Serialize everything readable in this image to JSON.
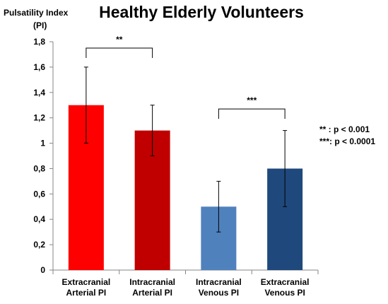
{
  "chart_data": {
    "type": "bar",
    "title": "Healthy Elderly Volunteers",
    "ylabel_line1": "Pulsatility Index",
    "ylabel_line2": "(PI)",
    "ylim": [
      0,
      1.8
    ],
    "yticks": [
      0,
      0.2,
      0.4,
      0.6,
      0.8,
      1,
      1.2,
      1.4,
      1.6,
      1.8
    ],
    "ytick_labels": [
      "0",
      "0,2",
      "0,4",
      "0,6",
      "0,8",
      "1",
      "1,2",
      "1,4",
      "1,6",
      "1,8"
    ],
    "grid": false,
    "categories": [
      [
        "Extracranial",
        "Arterial PI"
      ],
      [
        "Intracranial",
        "Arterial PI"
      ],
      [
        "Intracranial",
        "Venous PI"
      ],
      [
        "Extracranial",
        "Venous PI"
      ]
    ],
    "values": [
      1.3,
      1.1,
      0.5,
      0.8
    ],
    "errors": [
      0.3,
      0.2,
      0.2,
      0.3
    ],
    "bar_colors": [
      "#ff0000",
      "#c00000",
      "#4f81bd",
      "#1f497d"
    ],
    "significance": [
      {
        "from": 0,
        "to": 1,
        "label": "**",
        "y": 1.75
      },
      {
        "from": 2,
        "to": 3,
        "label": "***",
        "y": 1.27
      }
    ],
    "legend": [
      "** : p < 0.001",
      "***: p < 0.0001"
    ]
  }
}
